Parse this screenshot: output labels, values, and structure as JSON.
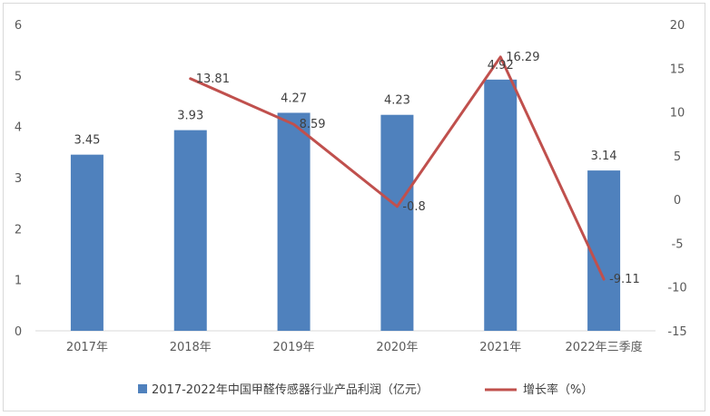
{
  "chart_data": {
    "type": "bar",
    "categories": [
      "2017年",
      "2018年",
      "2019年",
      "2020年",
      "2021年",
      "2022年三季度"
    ],
    "series": [
      {
        "name": "2017-2022年中国甲醛传感器行业产品利润（亿元）",
        "chart_type": "bar",
        "axis": "left",
        "values": [
          3.45,
          3.93,
          4.27,
          4.23,
          4.92,
          3.14
        ],
        "labels": [
          "3.45",
          "3.93",
          "4.27",
          "4.23",
          "4.92",
          "3.14"
        ]
      },
      {
        "name": "增长率（%）",
        "chart_type": "line",
        "axis": "right",
        "values": [
          null,
          13.81,
          8.59,
          -0.8,
          16.29,
          -9.11
        ],
        "labels": [
          "",
          "13.81",
          "8.59",
          "-0.8",
          "16.29",
          "-9.11"
        ]
      }
    ],
    "y_left": {
      "lim": [
        0,
        6
      ],
      "ticks": [
        "0",
        "1",
        "2",
        "3",
        "4",
        "5",
        "6"
      ]
    },
    "y_right": {
      "lim": [
        -15,
        20
      ],
      "ticks": [
        "-15",
        "-10",
        "-5",
        "0",
        "5",
        "10",
        "15",
        "20"
      ]
    },
    "grid": false,
    "legend_position": "bottom",
    "colors": {
      "bar": "#4f81bd",
      "line": "#c0504d",
      "axis": "#d9d9d9",
      "text": "#595959"
    }
  }
}
